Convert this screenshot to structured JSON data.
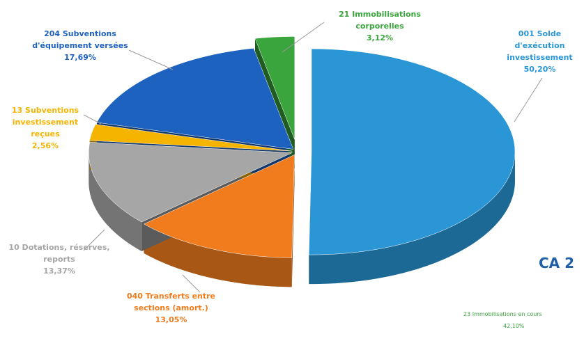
{
  "chart_data": {
    "type": "pie",
    "categories": [
      "001 Solde d'exécution investissement",
      "040 Transferts entre sections (amort.)",
      "10 Dotations, réserves, reports",
      "13 Subventions investissement reçues",
      "204 Subventions d'équipement versées",
      "21 Immobilisations corporelles"
    ],
    "values": [
      50.2,
      13.05,
      13.37,
      2.56,
      17.69,
      3.12
    ],
    "value_labels": [
      "50,20%",
      "13,05%",
      "13,37%",
      "2,56%",
      "17,69%",
      "3,12%"
    ],
    "colors": [
      "#2a96d6",
      "#f07c1e",
      "#a6a6a6",
      "#f4b400",
      "#1e62c0",
      "#3ba53d"
    ],
    "annotations": [
      "CA 2",
      "23 Immobilisations en cours",
      "42,10%"
    ]
  }
}
